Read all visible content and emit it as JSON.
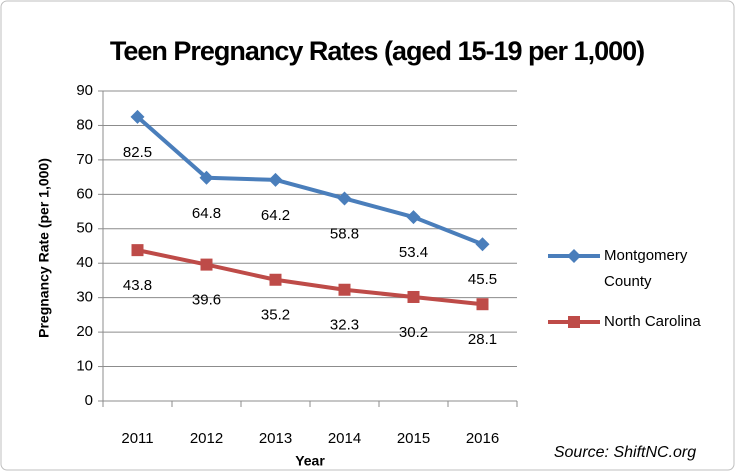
{
  "chart_data": {
    "type": "line",
    "title": "Teen Pregnancy Rates (aged 15-19 per 1,000)",
    "x_label": "Year",
    "y_label": "Pregnancy Rate (per 1,000)",
    "annotation": "Source: ShiftNC.org",
    "categories": [
      "2011",
      "2012",
      "2013",
      "2014",
      "2015",
      "2016"
    ],
    "series": [
      {
        "name": "Montgomery County",
        "color": "#4a7ebb",
        "marker": "diamond",
        "values": [
          82.5,
          64.8,
          64.2,
          58.8,
          53.4,
          45.5
        ]
      },
      {
        "name": "North Carolina",
        "color": "#be4b48",
        "marker": "square",
        "values": [
          43.8,
          39.6,
          35.2,
          32.3,
          30.2,
          28.1
        ]
      }
    ],
    "ylim": [
      0,
      90
    ],
    "yticks": [
      0,
      10,
      20,
      30,
      40,
      50,
      60,
      70,
      80,
      90
    ],
    "grid": true,
    "legend": "right"
  }
}
